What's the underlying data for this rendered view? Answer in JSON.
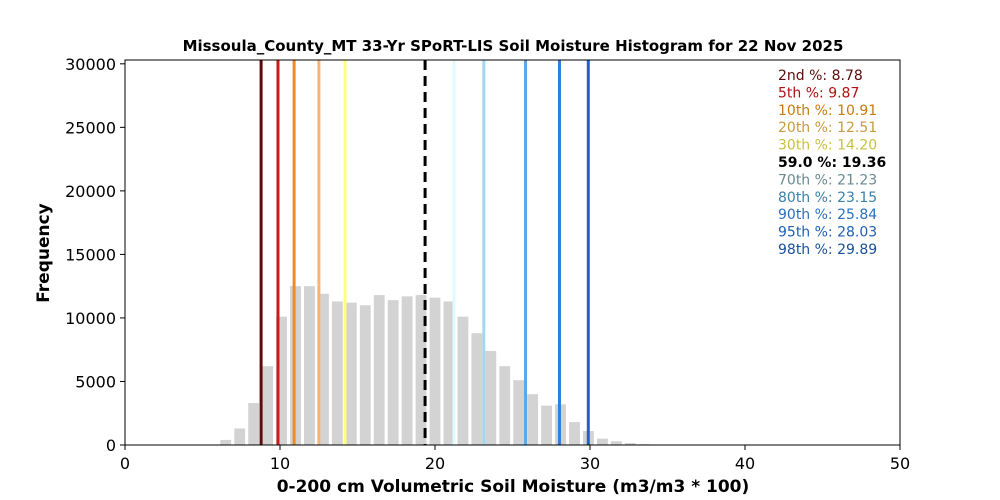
{
  "chart_data": {
    "type": "bar",
    "title": "Missoula_County_MT 33-Yr SPoRT-LIS Soil Moisture Histogram for 22 Nov 2025",
    "xlabel": "0-200 cm Volumetric Soil Moisture (m3/m3 * 100)",
    "ylabel": "Frequency",
    "xlim": [
      0,
      50
    ],
    "ylim": [
      0,
      30300
    ],
    "x_ticks": [
      "0",
      "10",
      "20",
      "30",
      "40",
      "50"
    ],
    "y_ticks": [
      "0",
      "5000",
      "10000",
      "15000",
      "20000",
      "25000",
      "30000"
    ],
    "bar_color": "#d3d3d3",
    "bins": [
      {
        "x": 6.5,
        "count": 400
      },
      {
        "x": 7.4,
        "count": 1300
      },
      {
        "x": 8.3,
        "count": 3300
      },
      {
        "x": 9.2,
        "count": 6200
      },
      {
        "x": 10.1,
        "count": 10100
      },
      {
        "x": 11.0,
        "count": 12500
      },
      {
        "x": 11.9,
        "count": 12500
      },
      {
        "x": 12.8,
        "count": 11900
      },
      {
        "x": 13.7,
        "count": 11300
      },
      {
        "x": 14.6,
        "count": 11200
      },
      {
        "x": 15.5,
        "count": 11000
      },
      {
        "x": 16.4,
        "count": 11800
      },
      {
        "x": 17.3,
        "count": 11400
      },
      {
        "x": 18.2,
        "count": 11700
      },
      {
        "x": 19.1,
        "count": 11800
      },
      {
        "x": 20.0,
        "count": 11600
      },
      {
        "x": 20.9,
        "count": 11300
      },
      {
        "x": 21.8,
        "count": 10100
      },
      {
        "x": 22.7,
        "count": 8800
      },
      {
        "x": 23.6,
        "count": 7400
      },
      {
        "x": 24.5,
        "count": 6200
      },
      {
        "x": 25.4,
        "count": 5100
      },
      {
        "x": 26.3,
        "count": 4000
      },
      {
        "x": 27.2,
        "count": 3100
      },
      {
        "x": 28.1,
        "count": 3200
      },
      {
        "x": 29.0,
        "count": 1800
      },
      {
        "x": 29.9,
        "count": 1100
      },
      {
        "x": 30.8,
        "count": 500
      },
      {
        "x": 31.7,
        "count": 300
      },
      {
        "x": 32.6,
        "count": 150
      },
      {
        "x": 33.5,
        "count": 60
      }
    ],
    "percentile_lines": [
      {
        "label": "2nd %: 8.78",
        "value": 8.78,
        "color": "#5c0a0a",
        "dashed": false
      },
      {
        "label": "5th %: 9.87",
        "value": 9.87,
        "color": "#d01818",
        "dashed": false
      },
      {
        "label": "10th %: 10.91",
        "value": 10.91,
        "color": "#f08a28",
        "dashed": false
      },
      {
        "label": "20th %: 12.51",
        "value": 12.51,
        "color": "#f7b277",
        "dashed": false
      },
      {
        "label": "30th %: 14.20",
        "value": 14.2,
        "color": "#ffff80",
        "dashed": false
      },
      {
        "label": "59.0 %: 19.36",
        "value": 19.36,
        "color": "#000000",
        "dashed": true
      },
      {
        "label": "70th %: 21.23",
        "value": 21.23,
        "color": "#e0fbff",
        "dashed": false
      },
      {
        "label": "80th %: 23.15",
        "value": 23.15,
        "color": "#a0d8f0",
        "dashed": false
      },
      {
        "label": "90th %: 25.84",
        "value": 25.84,
        "color": "#5aa8e8",
        "dashed": false
      },
      {
        "label": "95th %: 28.03",
        "value": 28.03,
        "color": "#2e7ee0",
        "dashed": false
      },
      {
        "label": "98th %: 29.89",
        "value": 29.89,
        "color": "#2060c8",
        "dashed": false
      }
    ],
    "label_colors": [
      "#5c0a0a",
      "#b01010",
      "#c87a10",
      "#c89a40",
      "#c8c040",
      "#000000",
      "#6a8a90",
      "#3a80a8",
      "#2a70c0",
      "#1f5fb0",
      "#1a4f9a"
    ],
    "grid": false,
    "legend_placement": "top-right"
  }
}
